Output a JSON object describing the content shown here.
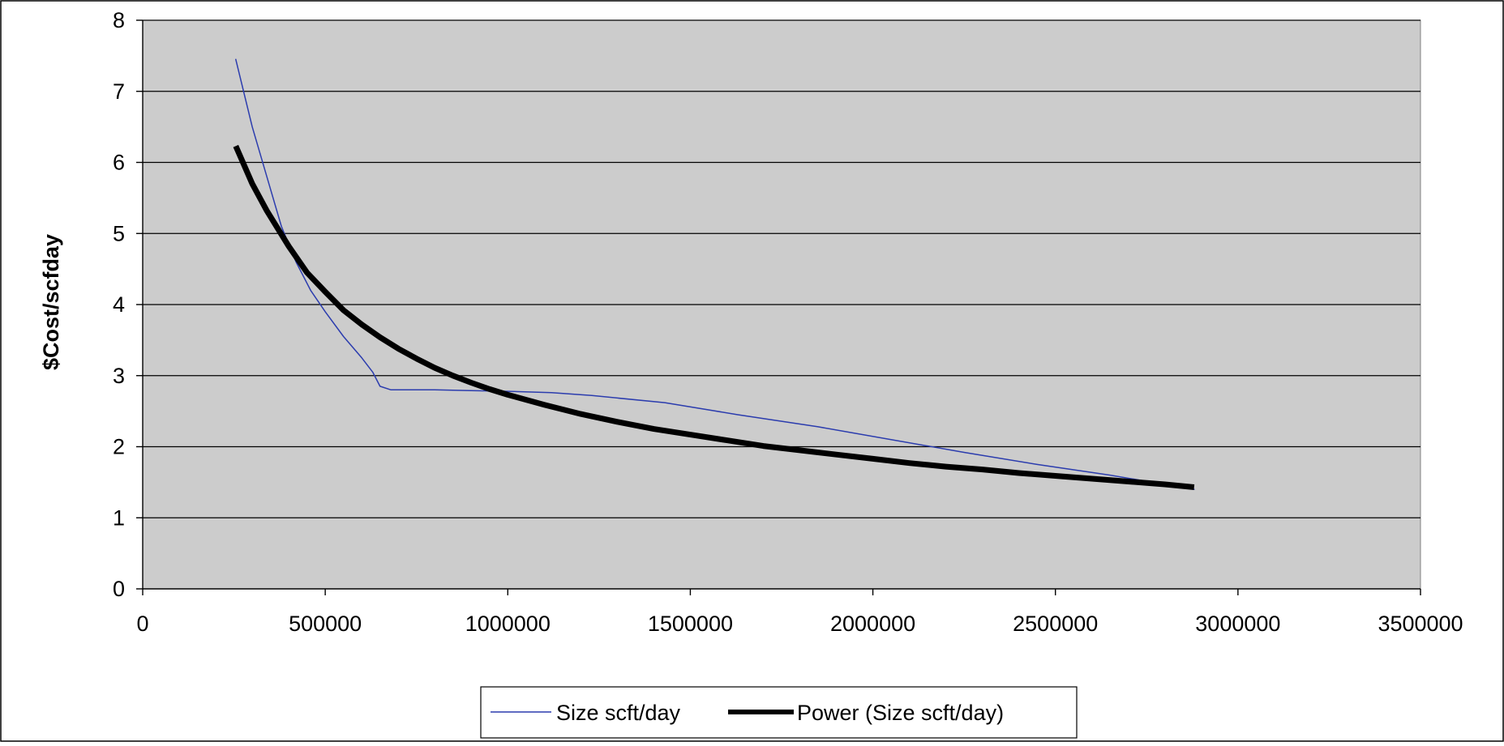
{
  "chart_data": {
    "type": "line",
    "title": "",
    "xlabel": "",
    "ylabel": "$Cost/scfday",
    "xlim": [
      0,
      3500000
    ],
    "ylim": [
      0,
      8
    ],
    "x_ticks": [
      0,
      500000,
      1000000,
      1500000,
      2000000,
      2500000,
      3000000,
      3500000
    ],
    "x_tick_labels": [
      "0",
      "500000",
      "1000000",
      "1500000",
      "2000000",
      "2500000",
      "3000000",
      "3500000"
    ],
    "y_ticks": [
      0,
      1,
      2,
      3,
      4,
      5,
      6,
      7,
      8
    ],
    "y_tick_labels": [
      "0",
      "1",
      "2",
      "3",
      "4",
      "5",
      "6",
      "7",
      "8"
    ],
    "grid": "horizontal",
    "legend_position": "bottom",
    "plot_background": "#cccccc",
    "series": [
      {
        "name": "Size scft/day",
        "color": "#2b3cae",
        "style": "thin",
        "x": [
          255000,
          300000,
          340000,
          380000,
          420000,
          460000,
          500000,
          550000,
          600000,
          630000,
          650000,
          680000,
          700000,
          800000,
          900000,
          1000000,
          1120000,
          1230000,
          1430000,
          1630000,
          1850000,
          2050000,
          2250000,
          2450000,
          2650000,
          2880000
        ],
        "y": [
          7.45,
          6.5,
          5.8,
          5.1,
          4.6,
          4.2,
          3.9,
          3.55,
          3.25,
          3.05,
          2.85,
          2.8,
          2.8,
          2.8,
          2.79,
          2.78,
          2.76,
          2.72,
          2.62,
          2.45,
          2.28,
          2.1,
          1.92,
          1.75,
          1.6,
          1.4
        ]
      },
      {
        "name": "Power (Size scft/day)",
        "color": "#000000",
        "style": "thick",
        "x": [
          255000,
          300000,
          340000,
          400000,
          450000,
          500000,
          550000,
          600000,
          650000,
          700000,
          750000,
          800000,
          850000,
          900000,
          950000,
          1000000,
          1100000,
          1200000,
          1300000,
          1400000,
          1500000,
          1600000,
          1700000,
          1800000,
          1900000,
          2000000,
          2100000,
          2200000,
          2300000,
          2400000,
          2500000,
          2600000,
          2700000,
          2800000,
          2880000
        ],
        "y": [
          6.23,
          5.7,
          5.32,
          4.82,
          4.45,
          4.18,
          3.92,
          3.72,
          3.54,
          3.38,
          3.24,
          3.11,
          3.0,
          2.9,
          2.81,
          2.73,
          2.59,
          2.46,
          2.35,
          2.25,
          2.17,
          2.09,
          2.01,
          1.95,
          1.89,
          1.83,
          1.77,
          1.72,
          1.68,
          1.63,
          1.59,
          1.55,
          1.51,
          1.47,
          1.43
        ]
      }
    ]
  }
}
